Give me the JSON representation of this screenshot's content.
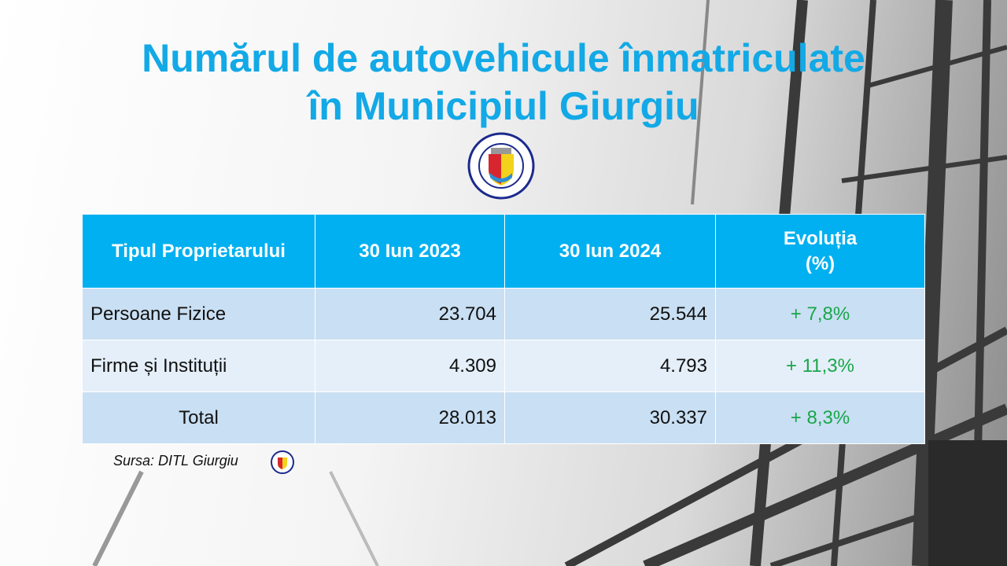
{
  "title": {
    "line1": "Numărul de autovehicule înmatriculate",
    "line2": "în Municipiul Giurgiu"
  },
  "logo": {
    "text_top": "DIRECȚIA DE IMPOZITE ȘI TAXE LOCALE",
    "text_bottom": "GIURGIU"
  },
  "table": {
    "headers": [
      "Tipul Proprietarului",
      "30 Iun 2023",
      "30 Iun 2024",
      "Evoluția",
      "(%)"
    ],
    "rows": [
      {
        "type": "Persoane  Fizice",
        "y2023": "23.704",
        "y2024": "25.544",
        "evolution": "+ 7,8%"
      },
      {
        "type": "Firme și Instituții",
        "y2023": "4.309",
        "y2024": "4.793",
        "evolution": "+ 11,3%"
      },
      {
        "type": "Total",
        "y2023": "28.013",
        "y2024": "30.337",
        "evolution": "+ 8,3%"
      }
    ]
  },
  "source": "Sursa: DITL Giurgiu",
  "colors": {
    "title": "#12a9e6",
    "header": "#00b0f0",
    "positive": "#1aa64a"
  }
}
